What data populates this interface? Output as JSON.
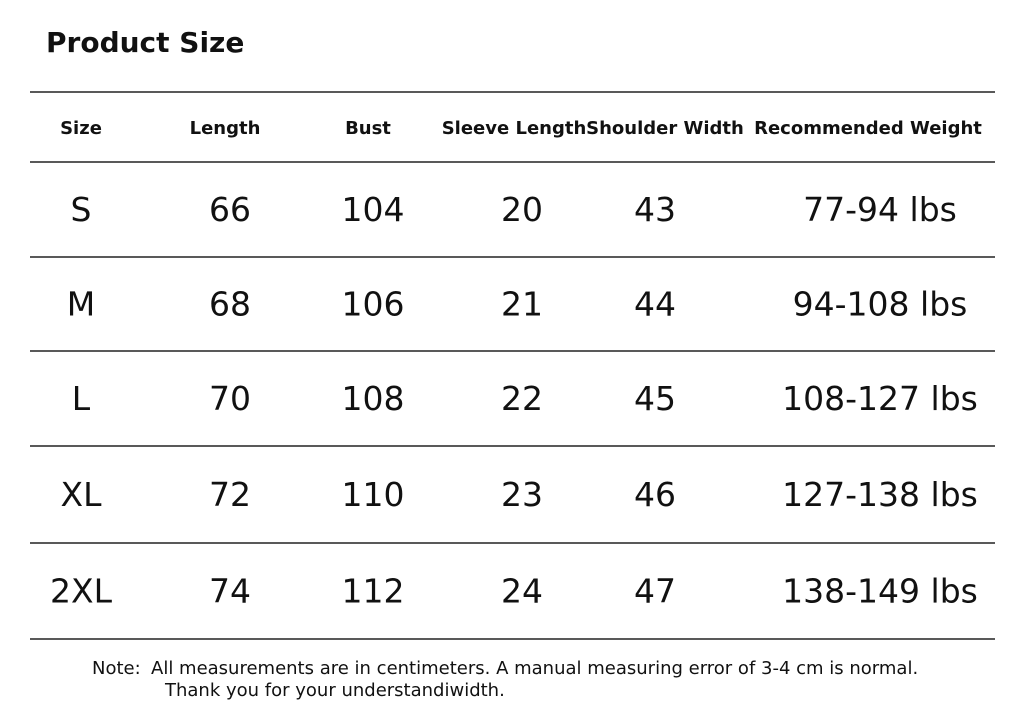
{
  "header": {
    "title": "Product Size"
  },
  "table": {
    "columns": [
      "Size",
      "Length",
      "Bust",
      "Sleeve Length",
      "Shoulder Width",
      "Recommended Weight"
    ],
    "rows": [
      [
        "S",
        66,
        104,
        20,
        43,
        "77-94 lbs"
      ],
      [
        "M",
        68,
        106,
        21,
        44,
        "94-108 lbs"
      ],
      [
        "L",
        70,
        108,
        22,
        45,
        "108-127 lbs"
      ],
      [
        "XL",
        72,
        110,
        23,
        46,
        "127-138 lbs"
      ],
      [
        "2XL",
        74,
        112,
        24,
        47,
        "138-149 lbs"
      ]
    ]
  },
  "note": {
    "label": "Note:",
    "lines": [
      "All measurements are in centimeters. A manual measuring error of 3-4 cm is normal.",
      "Thank you for your understandiwidth."
    ]
  }
}
